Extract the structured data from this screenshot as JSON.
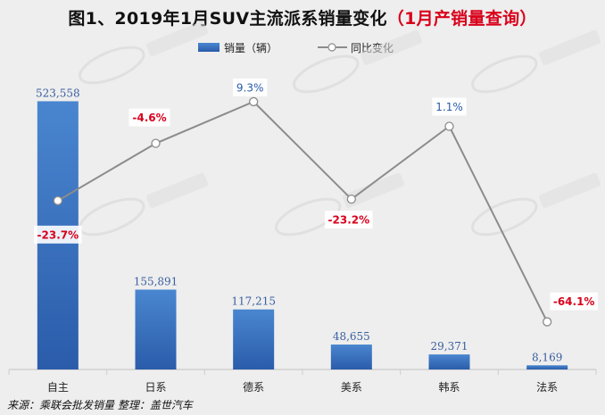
{
  "title": {
    "main": "图1、2019年1月SUV主流派系销量变化",
    "highlight": "（1月产销量查询）"
  },
  "legend": {
    "bar_label": "销量（辆）",
    "line_label": "同比变化"
  },
  "source_note": "来源：乘联会批发销量   整理：盖世汽车",
  "colors": {
    "bar_top": "#4a86d0",
    "bar_bottom": "#2a5caa",
    "line": "#8c8c8c",
    "yoy_negative": "#d9001b",
    "yoy_positive": "#2a5caa",
    "bar_label": "#3a5fa0"
  },
  "chart_data": {
    "type": "bar+line",
    "title": "图1、2019年1月SUV主流派系销量变化（1月产销量查询）",
    "categories": [
      "自主",
      "日系",
      "德系",
      "美系",
      "韩系",
      "法系"
    ],
    "series": [
      {
        "name": "销量（辆）",
        "type": "bar",
        "values": [
          523558,
          155891,
          117215,
          48655,
          29371,
          8169
        ],
        "labels": [
          "523,558",
          "155,891",
          "117,215",
          "48,655",
          "29,371",
          "8,169"
        ]
      },
      {
        "name": "同比变化",
        "type": "line",
        "values": [
          -23.7,
          -4.6,
          9.3,
          -23.2,
          1.1,
          -64.1
        ],
        "labels": [
          "-23.7%",
          "-4.6%",
          "9.3%",
          "-23.2%",
          "1.1%",
          "-64.1%"
        ]
      }
    ],
    "bar_ylim": [
      0,
      540000
    ],
    "line_ylim": [
      -80,
      20
    ],
    "xlabel": "",
    "ylabel": ""
  }
}
